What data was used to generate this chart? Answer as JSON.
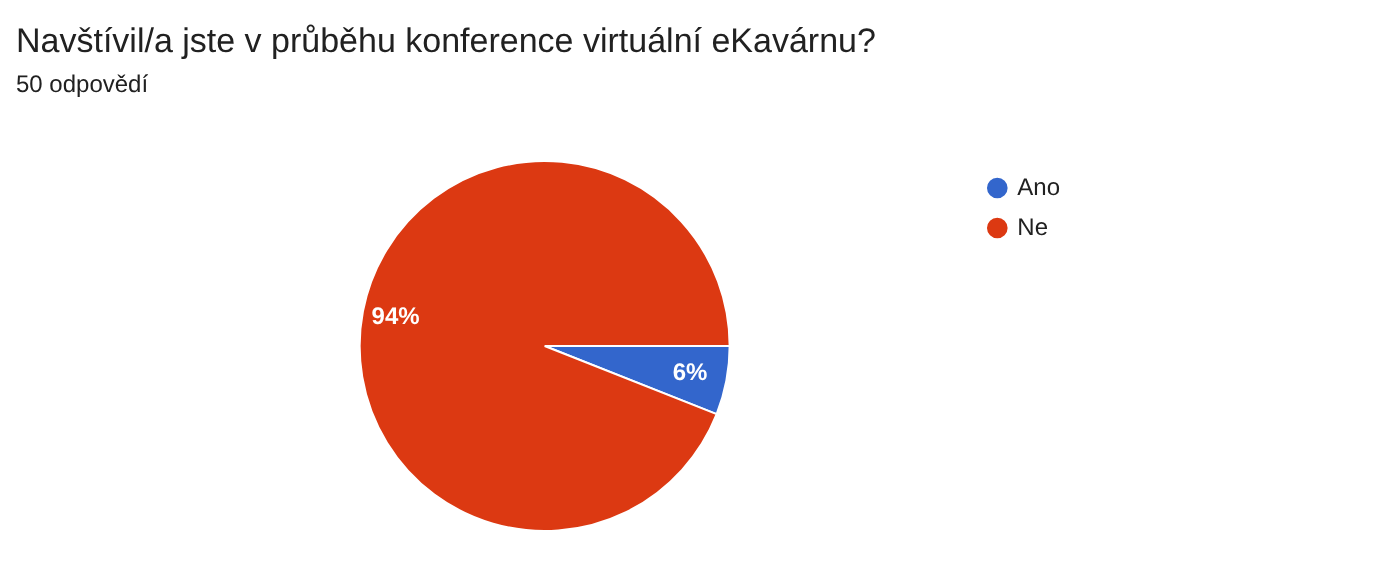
{
  "chart_data": {
    "type": "pie",
    "title": "Navštívil/a jste v průběhu konference virtuální eKavárnu?",
    "subtitle": "50 odpovědí",
    "categories": [
      "Ano",
      "Ne"
    ],
    "values": [
      6,
      94
    ],
    "colors": [
      "#3366cc",
      "#dc3912"
    ],
    "value_labels": [
      "6%",
      "94%"
    ],
    "legend": "right"
  }
}
